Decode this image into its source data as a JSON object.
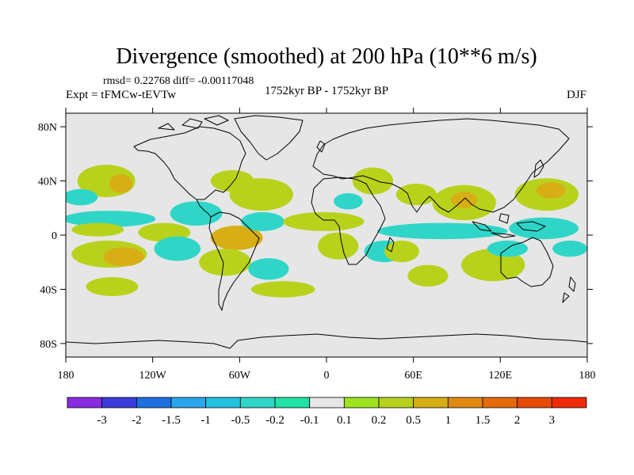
{
  "chart_data": {
    "type": "heatmap",
    "title": "Divergence (smoothed) at 200 hPa (10**6 m/s)",
    "stats_line": "rmsd= 0.22768   diff= -0.00117048",
    "experiment": "Expt = tFMCw-tEVTw",
    "period": "1752kyr BP - 1752kyr BP",
    "season": "DJF",
    "projection": "cylindrical equidistant",
    "xlim": [
      -180,
      180
    ],
    "ylim": [
      -90,
      90
    ],
    "x_ticks": [
      {
        "value": -180,
        "label": "180"
      },
      {
        "value": -120,
        "label": "120W"
      },
      {
        "value": -60,
        "label": "60W"
      },
      {
        "value": 0,
        "label": "0"
      },
      {
        "value": 60,
        "label": "60E"
      },
      {
        "value": 120,
        "label": "120E"
      },
      {
        "value": 180,
        "label": "180"
      }
    ],
    "y_ticks": [
      {
        "value": 80,
        "label": "80N"
      },
      {
        "value": 40,
        "label": "40N"
      },
      {
        "value": 0,
        "label": "0"
      },
      {
        "value": -40,
        "label": "40S"
      },
      {
        "value": -80,
        "label": "80S"
      }
    ],
    "colorbar": {
      "colors": [
        "#8a2be2",
        "#3b3bdc",
        "#1e6fe0",
        "#2aa6ea",
        "#22c1e0",
        "#2fd6c8",
        "#21e3a6",
        "#e6e6e6",
        "#9ee41e",
        "#b8d21c",
        "#d7ae16",
        "#e08a10",
        "#e46a0c",
        "#e84a08",
        "#f02a08"
      ],
      "labels": [
        "-3",
        "-2",
        "-1.5",
        "-1",
        "-0.5",
        "-0.2",
        "-0.1",
        "0.1",
        "0.2",
        "0.5",
        "1",
        "1.5",
        "2",
        "3"
      ]
    },
    "field_blobs": [
      {
        "lon": -152,
        "lat": 40,
        "rlon": 20,
        "rlat": 12,
        "value": 0.3
      },
      {
        "lon": -142,
        "lat": 38,
        "rlon": 8,
        "rlat": 7,
        "value": 0.6
      },
      {
        "lon": -170,
        "lat": 28,
        "rlon": 12,
        "rlat": 6,
        "value": -0.3
      },
      {
        "lon": -150,
        "lat": 12,
        "rlon": 32,
        "rlat": 6,
        "value": -0.3
      },
      {
        "lon": -158,
        "lat": 4,
        "rlon": 18,
        "rlat": 5,
        "value": 0.3
      },
      {
        "lon": -150,
        "lat": -14,
        "rlon": 26,
        "rlat": 10,
        "value": 0.3
      },
      {
        "lon": -140,
        "lat": -16,
        "rlon": 14,
        "rlat": 7,
        "value": 0.6
      },
      {
        "lon": -148,
        "lat": -38,
        "rlon": 18,
        "rlat": 7,
        "value": 0.3
      },
      {
        "lon": -112,
        "lat": 2,
        "rlon": 18,
        "rlat": 7,
        "value": 0.3
      },
      {
        "lon": -103,
        "lat": -10,
        "rlon": 16,
        "rlat": 9,
        "value": -0.3
      },
      {
        "lon": -90,
        "lat": 16,
        "rlon": 18,
        "rlat": 9,
        "value": -0.3
      },
      {
        "lon": -65,
        "lat": 40,
        "rlon": 15,
        "rlat": 8,
        "value": 0.3
      },
      {
        "lon": -45,
        "lat": 30,
        "rlon": 22,
        "rlat": 12,
        "value": 0.3
      },
      {
        "lon": -62,
        "lat": -2,
        "rlon": 18,
        "rlat": 9,
        "value": 0.6
      },
      {
        "lon": -44,
        "lat": 10,
        "rlon": 15,
        "rlat": 7,
        "value": -0.3
      },
      {
        "lon": -70,
        "lat": -20,
        "rlon": 18,
        "rlat": 10,
        "value": 0.3
      },
      {
        "lon": -40,
        "lat": -25,
        "rlon": 14,
        "rlat": 8,
        "value": -0.3
      },
      {
        "lon": -30,
        "lat": -40,
        "rlon": 22,
        "rlat": 6,
        "value": 0.3
      },
      {
        "lon": -2,
        "lat": 10,
        "rlon": 28,
        "rlat": 7,
        "value": 0.3
      },
      {
        "lon": 8,
        "lat": -8,
        "rlon": 14,
        "rlat": 10,
        "value": 0.3
      },
      {
        "lon": 15,
        "lat": 25,
        "rlon": 10,
        "rlat": 6,
        "value": -0.3
      },
      {
        "lon": 32,
        "lat": 40,
        "rlon": 14,
        "rlat": 10,
        "value": 0.3
      },
      {
        "lon": 40,
        "lat": -12,
        "rlon": 14,
        "rlat": 8,
        "value": -0.3
      },
      {
        "lon": 52,
        "lat": -12,
        "rlon": 12,
        "rlat": 8,
        "value": 0.3
      },
      {
        "lon": 62,
        "lat": 30,
        "rlon": 14,
        "rlat": 8,
        "value": 0.3
      },
      {
        "lon": 70,
        "lat": -30,
        "rlon": 14,
        "rlat": 8,
        "value": 0.3
      },
      {
        "lon": 80,
        "lat": 3,
        "rlon": 45,
        "rlat": 6,
        "value": -0.3
      },
      {
        "lon": 95,
        "lat": 24,
        "rlon": 22,
        "rlat": 13,
        "value": 0.3
      },
      {
        "lon": 95,
        "lat": 26,
        "rlon": 9,
        "rlat": 6,
        "value": 0.6
      },
      {
        "lon": 115,
        "lat": -22,
        "rlon": 22,
        "rlat": 12,
        "value": 0.3
      },
      {
        "lon": 125,
        "lat": -10,
        "rlon": 14,
        "rlat": 6,
        "value": -0.3
      },
      {
        "lon": 152,
        "lat": 30,
        "rlon": 22,
        "rlat": 12,
        "value": 0.3
      },
      {
        "lon": 155,
        "lat": 33,
        "rlon": 10,
        "rlat": 6,
        "value": 0.6
      },
      {
        "lon": 150,
        "lat": 5,
        "rlon": 24,
        "rlat": 8,
        "value": -0.3
      },
      {
        "lon": 168,
        "lat": -10,
        "rlon": 12,
        "rlat": 6,
        "value": -0.3
      }
    ]
  }
}
